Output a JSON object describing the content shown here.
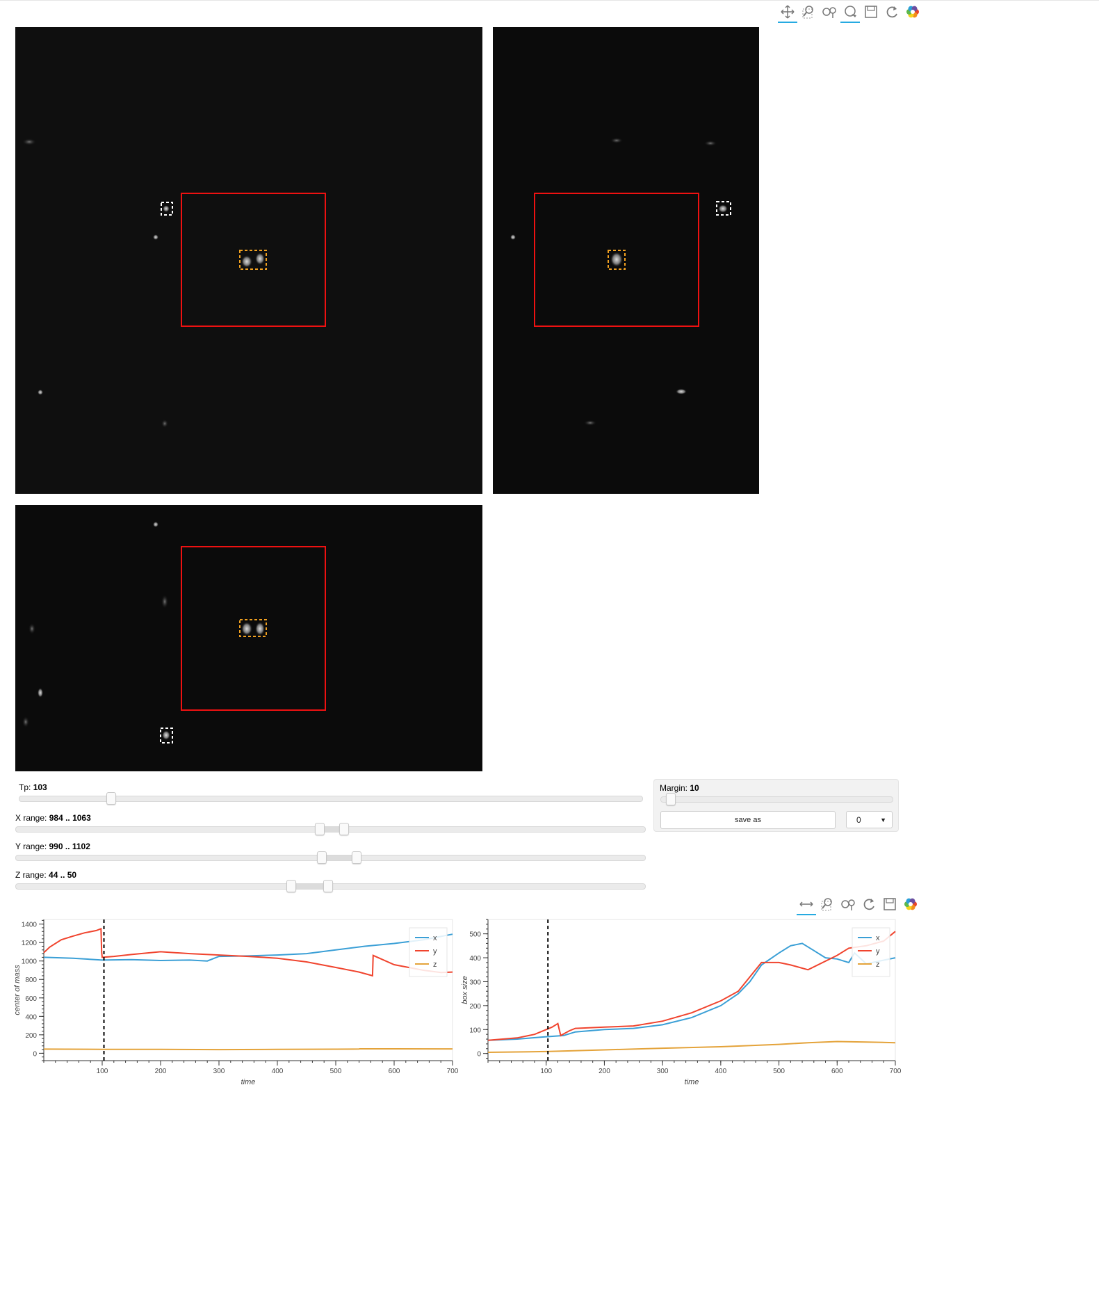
{
  "toolbar_top": {
    "tools": [
      {
        "name": "pan-icon",
        "active": true
      },
      {
        "name": "box-zoom-icon",
        "active": false
      },
      {
        "name": "wheel-zoom-icon",
        "active": false
      },
      {
        "name": "lasso-icon",
        "active": true
      },
      {
        "name": "save-icon",
        "active": false
      },
      {
        "name": "reset-icon",
        "active": false
      },
      {
        "name": "bokeh-logo-icon",
        "active": false
      }
    ]
  },
  "toolbar_bottom": {
    "tools": [
      {
        "name": "xpan-icon",
        "active": true
      },
      {
        "name": "box-zoom-icon",
        "active": false
      },
      {
        "name": "wheel-zoom-icon",
        "active": false
      },
      {
        "name": "reset-icon",
        "active": false
      },
      {
        "name": "save-icon",
        "active": false
      },
      {
        "name": "bokeh-logo-icon",
        "active": false
      }
    ]
  },
  "controls": {
    "tp": {
      "label": "Tp:",
      "value": "103",
      "fraction": 0.146
    },
    "x_range": {
      "label": "X range:",
      "value": "984 .. 1063",
      "lo": 0.482,
      "hi": 0.52
    },
    "y_range": {
      "label": "Y range:",
      "value": "990 .. 1102",
      "lo": 0.485,
      "hi": 0.54
    },
    "z_range": {
      "label": "Z range:",
      "value": "44 .. 50",
      "lo": 0.436,
      "hi": 0.495
    },
    "margin": {
      "label": "Margin:",
      "value": "10",
      "fraction": 0.04
    },
    "save_button": "save as",
    "select_value": "0",
    "select_arrow": "▼"
  },
  "colors": {
    "x": "#3a9fd6",
    "y": "#f0442e",
    "z": "#e4a33a",
    "roi": "#ee1111",
    "selected": "#f0a020",
    "other": "#ffffff",
    "cursor": "#000000"
  },
  "chart_data": [
    {
      "type": "line",
      "xlabel": "time",
      "ylabel": "center of mass",
      "xticks": [
        100,
        200,
        300,
        400,
        500,
        600,
        700
      ],
      "yticks": [
        0,
        200,
        400,
        600,
        800,
        1000,
        1200,
        1400
      ],
      "xlim": [
        0,
        700
      ],
      "ylim": [
        -80,
        1450
      ],
      "cursor_x": 103,
      "legend": [
        "x",
        "y",
        "z"
      ],
      "legend_position": "top-right",
      "series": [
        {
          "name": "x",
          "x": [
            0,
            50,
            100,
            150,
            200,
            250,
            280,
            300,
            350,
            400,
            450,
            500,
            550,
            600,
            650,
            700
          ],
          "y": [
            1040,
            1030,
            1010,
            1015,
            1005,
            1010,
            1000,
            1050,
            1055,
            1065,
            1080,
            1120,
            1160,
            1190,
            1230,
            1290
          ]
        },
        {
          "name": "y",
          "x": [
            0,
            10,
            30,
            50,
            70,
            90,
            98,
            99,
            100,
            120,
            150,
            200,
            250,
            300,
            350,
            400,
            450,
            500,
            540,
            563,
            564,
            600,
            650,
            680,
            700
          ],
          "y": [
            1090,
            1150,
            1230,
            1270,
            1305,
            1330,
            1350,
            1100,
            1040,
            1050,
            1070,
            1100,
            1080,
            1065,
            1050,
            1030,
            990,
            930,
            880,
            840,
            1060,
            960,
            900,
            875,
            880
          ]
        },
        {
          "name": "z",
          "x": [
            0,
            100,
            200,
            300,
            400,
            500,
            540,
            541,
            600,
            700
          ],
          "y": [
            45,
            43,
            42,
            40,
            42,
            44,
            46,
            48,
            48,
            47
          ]
        }
      ]
    },
    {
      "type": "line",
      "xlabel": "time",
      "ylabel": "box size",
      "xticks": [
        100,
        200,
        300,
        400,
        500,
        600,
        700
      ],
      "yticks": [
        0,
        100,
        200,
        300,
        400,
        500
      ],
      "xlim": [
        0,
        700
      ],
      "ylim": [
        -30,
        560
      ],
      "cursor_x": 103,
      "legend": [
        "x",
        "y",
        "z"
      ],
      "legend_position": "top-right",
      "series": [
        {
          "name": "x",
          "x": [
            0,
            50,
            100,
            130,
            150,
            200,
            250,
            300,
            350,
            400,
            430,
            450,
            470,
            500,
            520,
            540,
            560,
            580,
            600,
            620,
            630,
            650,
            680,
            700
          ],
          "y": [
            55,
            60,
            70,
            75,
            90,
            100,
            105,
            120,
            150,
            200,
            250,
            300,
            370,
            420,
            450,
            460,
            430,
            400,
            395,
            380,
            420,
            375,
            390,
            400
          ]
        },
        {
          "name": "y",
          "x": [
            0,
            50,
            80,
            100,
            110,
            120,
            125,
            140,
            150,
            200,
            250,
            300,
            350,
            400,
            430,
            450,
            470,
            500,
            520,
            550,
            600,
            620,
            650,
            680,
            700
          ],
          "y": [
            55,
            65,
            80,
            100,
            110,
            125,
            75,
            95,
            105,
            110,
            115,
            135,
            170,
            220,
            260,
            320,
            380,
            380,
            370,
            350,
            410,
            440,
            450,
            470,
            510
          ]
        },
        {
          "name": "z",
          "x": [
            0,
            100,
            200,
            300,
            400,
            500,
            550,
            600,
            650,
            700
          ],
          "y": [
            5,
            8,
            15,
            22,
            28,
            38,
            45,
            50,
            48,
            45
          ]
        }
      ]
    }
  ]
}
